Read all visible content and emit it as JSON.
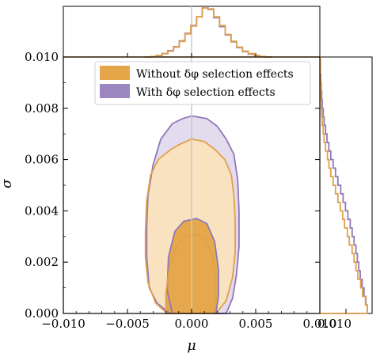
{
  "chart_data": {
    "type": "corner-contour",
    "xlabel": "μ",
    "ylabel": "σ",
    "xlim": [
      -0.01,
      0.01
    ],
    "ylim": [
      0.0,
      0.01
    ],
    "xticks": [
      {
        "value": -0.01,
        "label": "−0.010"
      },
      {
        "value": -0.005,
        "label": "−0.005"
      },
      {
        "value": 0.0,
        "label": "0.000"
      },
      {
        "value": 0.005,
        "label": "0.005"
      },
      {
        "value": 0.01,
        "label": "0.010"
      }
    ],
    "yticks": [
      {
        "value": 0.0,
        "label": "0.000"
      },
      {
        "value": 0.002,
        "label": "0.002"
      },
      {
        "value": 0.004,
        "label": "0.004"
      },
      {
        "value": 0.006,
        "label": "0.006"
      },
      {
        "value": 0.008,
        "label": "0.008"
      },
      {
        "value": 0.01,
        "label": "0.010"
      }
    ],
    "right_panel_xtick": {
      "value": 0.01,
      "label": "0.010"
    },
    "truth_value": {
      "mu": 0.0
    },
    "legend": {
      "placement": "upper center",
      "entries": [
        {
          "label": "Without δφ selection effects",
          "color": "#e5a64a"
        },
        {
          "label": "With δφ selection effects",
          "color": "#9b86c0"
        }
      ]
    },
    "series": [
      {
        "name": "Without δφ selection effects",
        "fill_light": "#f8e2c0",
        "fill_dark": "#e6a84c",
        "line": "#e0a14a",
        "contour_90": [
          [
            -0.0019,
            0.0
          ],
          [
            -0.0028,
            0.0004
          ],
          [
            -0.0034,
            0.0012
          ],
          [
            -0.0036,
            0.0022
          ],
          [
            -0.0036,
            0.0032
          ],
          [
            -0.0035,
            0.0044
          ],
          [
            -0.0032,
            0.0054
          ],
          [
            -0.0026,
            0.006
          ],
          [
            -0.0016,
            0.0064
          ],
          [
            -0.0009,
            0.0066
          ],
          [
            0.0,
            0.0068
          ],
          [
            0.001,
            0.0067
          ],
          [
            0.0018,
            0.0064
          ],
          [
            0.0026,
            0.006
          ],
          [
            0.0031,
            0.0054
          ],
          [
            0.0033,
            0.0046
          ],
          [
            0.0034,
            0.0036
          ],
          [
            0.0034,
            0.0024
          ],
          [
            0.0032,
            0.0014
          ],
          [
            0.0027,
            0.0005
          ],
          [
            0.0019,
            0.0
          ]
        ],
        "contour_50": [
          [
            -0.002,
            0.0
          ],
          [
            -0.002,
            0.0008
          ],
          [
            -0.0017,
            0.0019
          ],
          [
            -0.0012,
            0.0026
          ],
          [
            -0.0005,
            0.003
          ],
          [
            0.0003,
            0.0031
          ],
          [
            0.001,
            0.0029
          ],
          [
            0.0016,
            0.0023
          ],
          [
            0.0019,
            0.0013
          ],
          [
            0.0019,
            0.0004
          ],
          [
            0.0017,
            0.0
          ]
        ],
        "mu_histogram": [
          0.0,
          0.01,
          0.03,
          0.07,
          0.12,
          0.2,
          0.32,
          0.47,
          0.63,
          0.82,
          1.0,
          0.98,
          0.82,
          0.64,
          0.46,
          0.32,
          0.2,
          0.12,
          0.07,
          0.03,
          0.01,
          0.0
        ],
        "sigma_histogram": [
          1.0,
          0.96,
          0.9,
          0.86,
          0.8,
          0.76,
          0.72,
          0.68,
          0.62,
          0.58,
          0.52,
          0.48,
          0.43,
          0.38,
          0.33,
          0.28,
          0.23,
          0.19,
          0.16,
          0.12,
          0.09,
          0.07,
          0.05,
          0.04,
          0.03,
          0.02,
          0.02,
          0.01,
          0.01,
          0.01
        ]
      },
      {
        "name": "With δφ selection effects",
        "fill_light": "#e3dcef",
        "fill_dark": "#e6a84c",
        "line": "#8f78b8",
        "contour_90": [
          [
            -0.0017,
            0.0
          ],
          [
            -0.0027,
            0.0004
          ],
          [
            -0.0033,
            0.001
          ],
          [
            -0.0035,
            0.0022
          ],
          [
            -0.0035,
            0.0034
          ],
          [
            -0.0034,
            0.0046
          ],
          [
            -0.003,
            0.0058
          ],
          [
            -0.0024,
            0.0068
          ],
          [
            -0.0015,
            0.0074
          ],
          [
            -0.0007,
            0.0076
          ],
          [
            0.0,
            0.0077
          ],
          [
            0.0012,
            0.0076
          ],
          [
            0.002,
            0.0073
          ],
          [
            0.0027,
            0.0068
          ],
          [
            0.0033,
            0.0062
          ],
          [
            0.0036,
            0.0052
          ],
          [
            0.0037,
            0.004
          ],
          [
            0.0037,
            0.0026
          ],
          [
            0.0035,
            0.0015
          ],
          [
            0.0032,
            0.0006
          ],
          [
            0.0027,
            0.0
          ]
        ],
        "contour_50": [
          [
            -0.0015,
            0.0
          ],
          [
            -0.0019,
            0.0009
          ],
          [
            -0.0018,
            0.0022
          ],
          [
            -0.0013,
            0.0032
          ],
          [
            -0.0006,
            0.0036
          ],
          [
            0.0004,
            0.0037
          ],
          [
            0.0012,
            0.0035
          ],
          [
            0.0018,
            0.0028
          ],
          [
            0.0021,
            0.0017
          ],
          [
            0.0021,
            0.0007
          ],
          [
            0.0019,
            0.0
          ]
        ],
        "mu_histogram": [
          0.0,
          0.01,
          0.03,
          0.07,
          0.13,
          0.21,
          0.33,
          0.48,
          0.64,
          0.82,
          1.0,
          0.97,
          0.8,
          0.62,
          0.45,
          0.31,
          0.19,
          0.11,
          0.06,
          0.03,
          0.01,
          0.0
        ],
        "sigma_histogram": [
          1.0,
          0.97,
          0.93,
          0.89,
          0.85,
          0.82,
          0.79,
          0.76,
          0.72,
          0.68,
          0.64,
          0.59,
          0.54,
          0.49,
          0.44,
          0.38,
          0.33,
          0.28,
          0.23,
          0.19,
          0.15,
          0.12,
          0.09,
          0.07,
          0.05,
          0.04,
          0.03,
          0.02,
          0.01,
          0.01
        ]
      }
    ]
  }
}
